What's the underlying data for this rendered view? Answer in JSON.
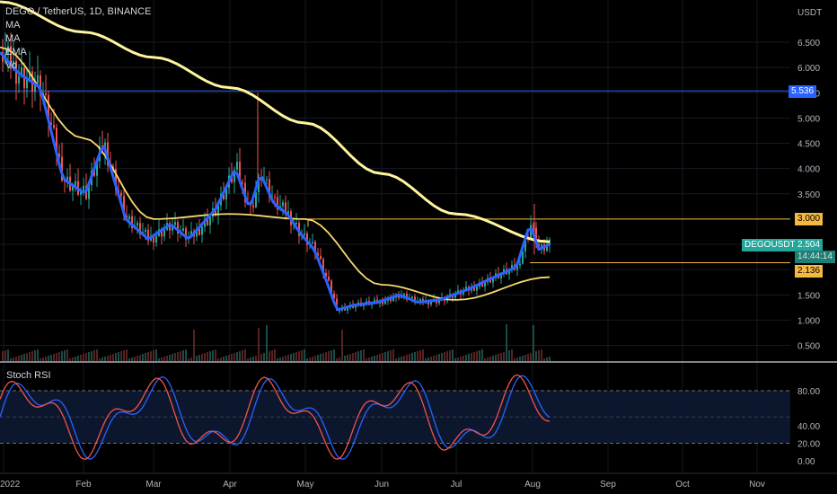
{
  "header": {
    "symbol_line": "DEGO / TetherUS, 1D, BINANCE",
    "indicators": [
      "MA",
      "MA",
      "EMA",
      "Vo"
    ]
  },
  "price_axis": {
    "currency": "USDT",
    "ticks": [
      "6.500",
      "6.000",
      "5.500",
      "5.000",
      "4.500",
      "4.000",
      "3.500",
      "3.000",
      "2.500",
      "2.000",
      "1.500",
      "1.000",
      "0.500"
    ]
  },
  "rsi": {
    "title": "Stoch RSI",
    "ticks": [
      "80.00",
      "40.00",
      "20.00",
      "0.00"
    ]
  },
  "time_axis": [
    "2022",
    "Feb",
    "Mar",
    "Apr",
    "May",
    "Jun",
    "Jul",
    "Aug",
    "Sep",
    "Oct",
    "Nov"
  ],
  "tags": {
    "blue_line": "5.536",
    "level_top": "3.000",
    "level_bottom": "2.136",
    "symbol": "DEGOUSDT",
    "last_price": "2.504",
    "countdown": "14:44:14"
  },
  "colors": {
    "background": "#000000",
    "up": "#26a69a",
    "down": "#ef5350",
    "ema": "#2962ff",
    "ma_long": "#fff59d",
    "ma_mid": "#f9d96b",
    "level": "#f5b942",
    "blue_hline": "#2962ff",
    "rsi_k": "#2962ff",
    "rsi_d": "#ef5350"
  },
  "chart_data": {
    "type": "line",
    "title": "DEGO / TetherUS, 1D, BINANCE",
    "x": [
      "Jan",
      "Feb",
      "Mar",
      "Apr",
      "May",
      "Jun",
      "Jul",
      "Aug"
    ],
    "ylim": [
      0.3,
      7.0
    ],
    "series": [
      {
        "name": "EMA",
        "values": [
          6.2,
          3.9,
          2.75,
          3.8,
          2.6,
          1.3,
          1.45,
          2.5
        ]
      },
      {
        "name": "MA",
        "values": [
          6.4,
          4.6,
          3.0,
          3.1,
          3.0,
          1.7,
          1.4,
          1.85
        ]
      },
      {
        "name": "MA",
        "values": [
          7.3,
          6.7,
          6.2,
          5.6,
          4.9,
          3.9,
          3.1,
          2.55
        ]
      }
    ],
    "horizontal_levels": [
      5.536,
      3.0,
      2.136
    ],
    "last_price": 2.504,
    "stoch_rsi_ylim": [
      0,
      100
    ],
    "stoch_rsi_bands": [
      80,
      20
    ]
  }
}
